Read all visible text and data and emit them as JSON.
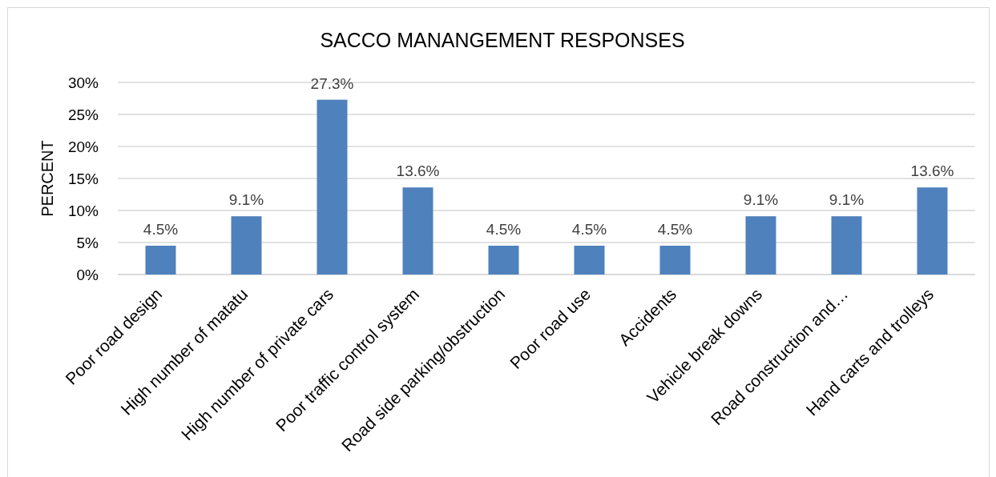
{
  "chart_data": {
    "type": "bar",
    "title": "SACCO MANANGEMENT RESPONSES",
    "ylabel": "PERCENT",
    "categories": [
      "Poor road design",
      "High number of matatu",
      "High number of private cars",
      "Poor traffic control system",
      "Road side parking/obstruction",
      "Poor road use",
      "Accidents",
      "Vehicle break downs",
      "Road construction and…",
      "Hand carts and trolleys"
    ],
    "values": [
      4.5,
      9.1,
      27.3,
      13.6,
      4.5,
      4.5,
      4.5,
      9.1,
      9.1,
      13.6
    ],
    "value_labels": [
      "4.5%",
      "9.1%",
      "27.3%",
      "13.6%",
      "4.5%",
      "4.5%",
      "4.5%",
      "9.1%",
      "9.1%",
      "13.6%"
    ],
    "color": "#4f81bd",
    "ylim": [
      0,
      30
    ],
    "yticks": [
      {
        "value": 0,
        "label": "0%"
      },
      {
        "value": 5,
        "label": "5%"
      },
      {
        "value": 10,
        "label": "10%"
      },
      {
        "value": 15,
        "label": "15%"
      },
      {
        "value": 20,
        "label": "20%"
      },
      {
        "value": 25,
        "label": "25%"
      },
      {
        "value": 30,
        "label": "30%"
      }
    ],
    "grid": "y"
  }
}
